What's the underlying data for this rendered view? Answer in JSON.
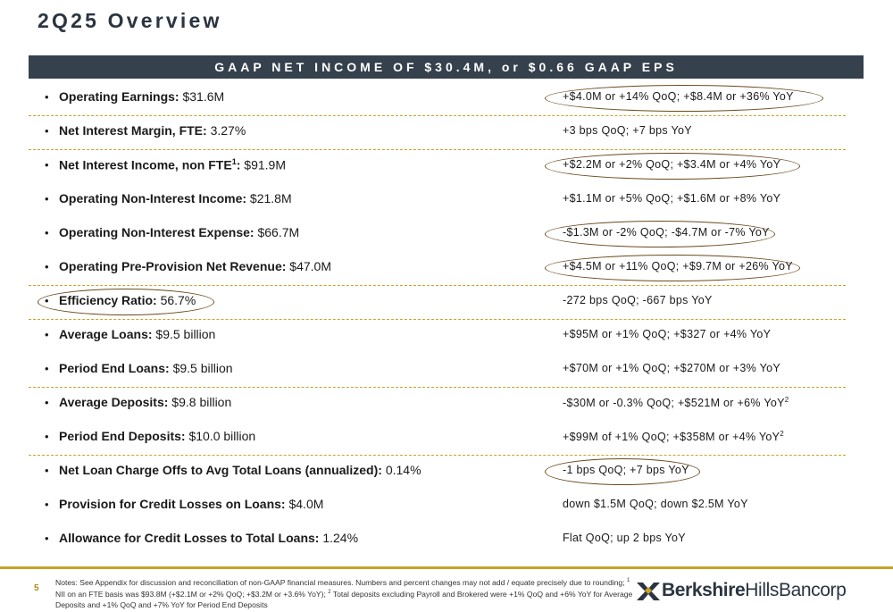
{
  "slide": {
    "title": "2Q25 Overview",
    "banner": "GAAP NET INCOME OF $30.4M, or $0.66 GAAP EPS",
    "page_number": "5"
  },
  "rows": [
    {
      "label": "Operating Earnings:",
      "value": " $31.6M",
      "change": "+$4.0M or +14% QoQ; +$8.4M or +36% YoY",
      "circled": "change"
    },
    {
      "label": "Net Interest Margin, FTE:",
      "value": " 3.27%",
      "change": "+3 bps QoQ; +7 bps YoY",
      "circled": "none"
    },
    {
      "label": "Net Interest Income, non FTE",
      "label_sup": "1",
      "label_suffix": ":",
      "value": " $91.9M",
      "change": "+$2.2M or +2% QoQ; +$3.4M or +4% YoY",
      "circled": "change"
    },
    {
      "label": "Operating Non-Interest Income:",
      "value": " $21.8M",
      "change": "+$1.1M or +5% QoQ; +$1.6M or +8% YoY",
      "circled": "none"
    },
    {
      "label": "Operating Non-Interest Expense:",
      "value": " $66.7M",
      "change": "-$1.3M or -2% QoQ; -$4.7M or -7% YoY",
      "circled": "change"
    },
    {
      "label": "Operating Pre-Provision Net Revenue:",
      "value": " $47.0M",
      "change": "+$4.5M or +11% QoQ; +$9.7M or +26% YoY",
      "circled": "change"
    },
    {
      "label": "Efficiency Ratio:",
      "value": " 56.7%",
      "change": "-272 bps QoQ; -667 bps YoY",
      "circled": "metric"
    },
    {
      "label": "Average Loans:",
      "value": " $9.5 billion",
      "change": "+$95M or +1% QoQ; +$327 or +4% YoY",
      "circled": "none"
    },
    {
      "label": "Period End Loans:",
      "value": " $9.5 billion",
      "change": "+$70M or +1% QoQ; +$270M or +3% YoY",
      "circled": "none"
    },
    {
      "label": "Average Deposits:",
      "value": " $9.8 billion",
      "change": "-$30M or -0.3% QoQ; +$521M or +6% YoY",
      "change_sup": "2",
      "circled": "none"
    },
    {
      "label": "Period End Deposits:",
      "value": " $10.0 billion",
      "change": "+$99M of +1% QoQ; +$358M or +4% YoY",
      "change_sup": "2",
      "circled": "none"
    },
    {
      "label": "Net Loan Charge Offs to Avg Total Loans (annualized):",
      "value": " 0.14%",
      "change": "-1 bps QoQ; +7 bps YoY",
      "circled": "change"
    },
    {
      "label": "Provision for Credit Losses on Loans:",
      "value": " $4.0M",
      "change": "down $1.5M QoQ; down $2.5M YoY",
      "circled": "none"
    },
    {
      "label": "Allowance for Credit Losses to Total Loans:",
      "value": " 1.24%",
      "change": "Flat QoQ; up 2 bps YoY",
      "circled": "none"
    }
  ],
  "bullet": "•",
  "notes": {
    "line_a": "Notes: See Appendix for discussion and reconciliation of non-GAAP financial measures. Numbers and percent changes may not add / equate precisely due to rounding; ",
    "sup1": "1",
    "line_b": " NII on an FTE basis was $93.8M (+$2.1M or +2% QoQ; +$3.2M or +3.6% YoY); ",
    "sup2": "2",
    "line_c": " Total deposits excluding Payroll and Brokered were +1% QoQ and +6% YoY for Average Deposits and +1% QoQ and +7% YoY for Period End Deposits"
  },
  "logo": {
    "icon": "berkshire-x-mark-icon",
    "bold": "Berkshire",
    "light": "HillsBancorp"
  },
  "colors": {
    "banner_bg": "#35414d",
    "title_color": "#2b3440",
    "gold": "#c9a227",
    "oval_color": "#6b4a1c"
  }
}
